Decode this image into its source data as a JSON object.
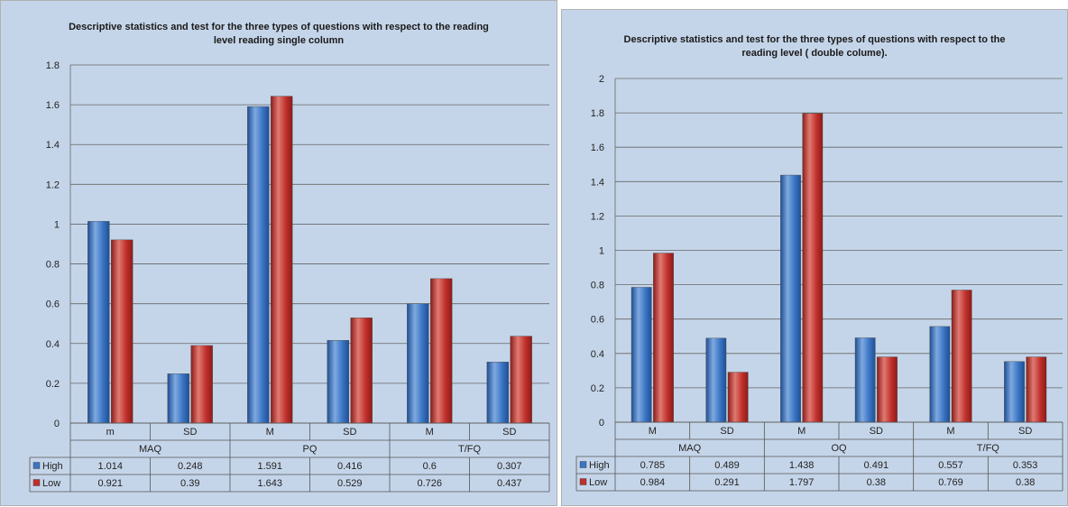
{
  "chart_data": [
    {
      "type": "bar",
      "title": "Descriptive statistics and test for the three types of questions  with respect to the reading\nlevel  reading  single column",
      "groups": [
        "MAQ",
        "PQ",
        "T/FQ"
      ],
      "categories": [
        "m",
        "SD",
        "M",
        "SD",
        "M",
        "SD"
      ],
      "series": [
        {
          "name": "High",
          "color": "#3a75c4",
          "values": [
            1.014,
            0.248,
            1.591,
            0.416,
            0.6,
            0.307
          ],
          "labels": [
            "1.014",
            "0.248",
            "1.591",
            "0.416",
            "0.6",
            "0.307"
          ]
        },
        {
          "name": "Low",
          "color": "#c0302b",
          "values": [
            0.921,
            0.39,
            1.643,
            0.529,
            0.726,
            0.437
          ],
          "labels": [
            "0.921",
            "0.39",
            "1.643",
            "0.529",
            "0.726",
            "0.437"
          ]
        }
      ],
      "ylim": [
        0,
        1.8
      ],
      "yticks": [
        "0",
        "0.2",
        "0.4",
        "0.6",
        "0.8",
        "1",
        "1.2",
        "1.4",
        "1.6",
        "1.8"
      ],
      "grid": true,
      "legend": "data table"
    },
    {
      "type": "bar",
      "title": "Descriptive statistics and test for the three types of questions with respect to the\nreading level  ( double colume).",
      "groups": [
        "MAQ",
        "OQ",
        "T/FQ"
      ],
      "categories": [
        "M",
        "SD",
        "M",
        "SD",
        "M",
        "SD"
      ],
      "series": [
        {
          "name": "High",
          "color": "#3a75c4",
          "values": [
            0.785,
            0.489,
            1.438,
            0.491,
            0.557,
            0.353
          ],
          "labels": [
            "0.785",
            "0.489",
            "1.438",
            "0.491",
            "0.557",
            "0.353"
          ]
        },
        {
          "name": "Low",
          "color": "#c0302b",
          "values": [
            0.984,
            0.291,
            1.797,
            0.38,
            0.769,
            0.38
          ],
          "labels": [
            "0.984",
            "0.291",
            "1.797",
            "0.38",
            "0.769",
            "0.38"
          ]
        }
      ],
      "ylim": [
        0,
        2
      ],
      "yticks": [
        "0",
        "0.2",
        "0.4",
        "0.6",
        "0.8",
        "1",
        "1.2",
        "1.4",
        "1.6",
        "1.8",
        "2"
      ],
      "grid": true,
      "legend": "data table"
    }
  ]
}
